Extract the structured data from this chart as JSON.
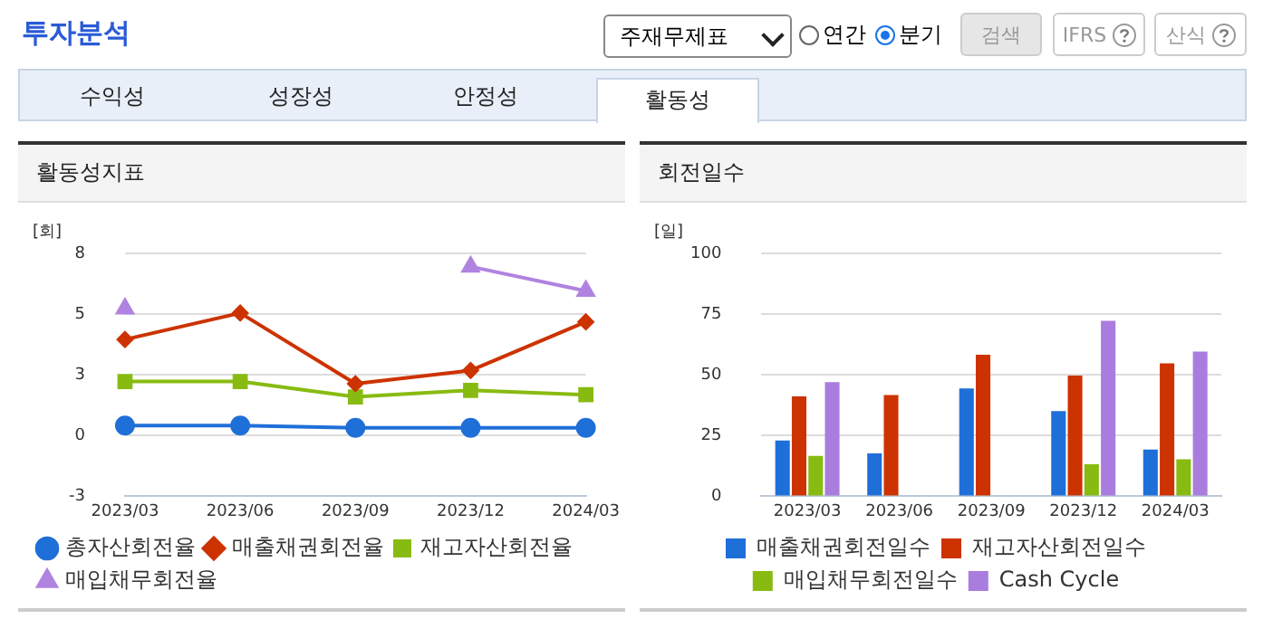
{
  "chart_data": [
    {
      "type": "other",
      "title": "투자분석",
      "annotations": [
        "주재무제표",
        "연간",
        "분기",
        "검색",
        "IFRS",
        "산식",
        "수익성",
        "성장성",
        "안정성",
        "활동성"
      ]
    },
    {
      "type": "line",
      "title": "활동성지표",
      "ylabel": "[회]",
      "categories": [
        "2023/03",
        "2023/06",
        "2023/09",
        "2023/12",
        "2024/03"
      ],
      "ylim": [
        -3,
        8
      ],
      "yticks": [
        -3,
        {
          "value": -0.25,
          "label": "0"
        },
        {
          "value": 2.5,
          "label": "3"
        },
        {
          "value": 5.25,
          "label": "5"
        },
        8
      ],
      "grid": "y",
      "legend": "bottom",
      "series": [
        {
          "name": "총자산회전율",
          "color": "#1f6fd8",
          "marker": "circle",
          "values": [
            0.2,
            0.2,
            0.1,
            0.1,
            0.1
          ]
        },
        {
          "name": "매출채권회전율",
          "color": "#cc3300",
          "marker": "diamond",
          "values": [
            4.1,
            5.3,
            2.1,
            2.7,
            4.9
          ]
        },
        {
          "name": "재고자산회전율",
          "color": "#88bb11",
          "marker": "square",
          "values": [
            2.2,
            2.2,
            1.5,
            1.8,
            1.6
          ]
        },
        {
          "name": "매입채무회전율",
          "color": "#b083e0",
          "marker": "triangle",
          "values": [
            5.5,
            null,
            null,
            7.4,
            6.3
          ]
        }
      ]
    },
    {
      "type": "bar",
      "title": "회전일수",
      "ylabel": "[일]",
      "categories": [
        "2023/03",
        "2023/06",
        "2023/09",
        "2023/12",
        "2024/03"
      ],
      "ylim": [
        0,
        100
      ],
      "yticks": [
        0,
        25,
        50,
        75,
        100
      ],
      "grid": "y",
      "legend": "bottom",
      "series": [
        {
          "name": "매출채권회전일수",
          "color": "#1f6fd8",
          "values": [
            23,
            17.7,
            44.4,
            35.1,
            19.2
          ]
        },
        {
          "name": "재고자산회전일수",
          "color": "#cc3300",
          "values": [
            41.1,
            41.7,
            58.3,
            49.7,
            54.7
          ]
        },
        {
          "name": "매입채무회전일수",
          "color": "#88bb11",
          "values": [
            16.6,
            null,
            null,
            13.2,
            15.2
          ]
        },
        {
          "name": "Cash Cycle",
          "color": "#a97ddd",
          "values": [
            47,
            null,
            null,
            72.2,
            59.6
          ]
        }
      ]
    }
  ]
}
